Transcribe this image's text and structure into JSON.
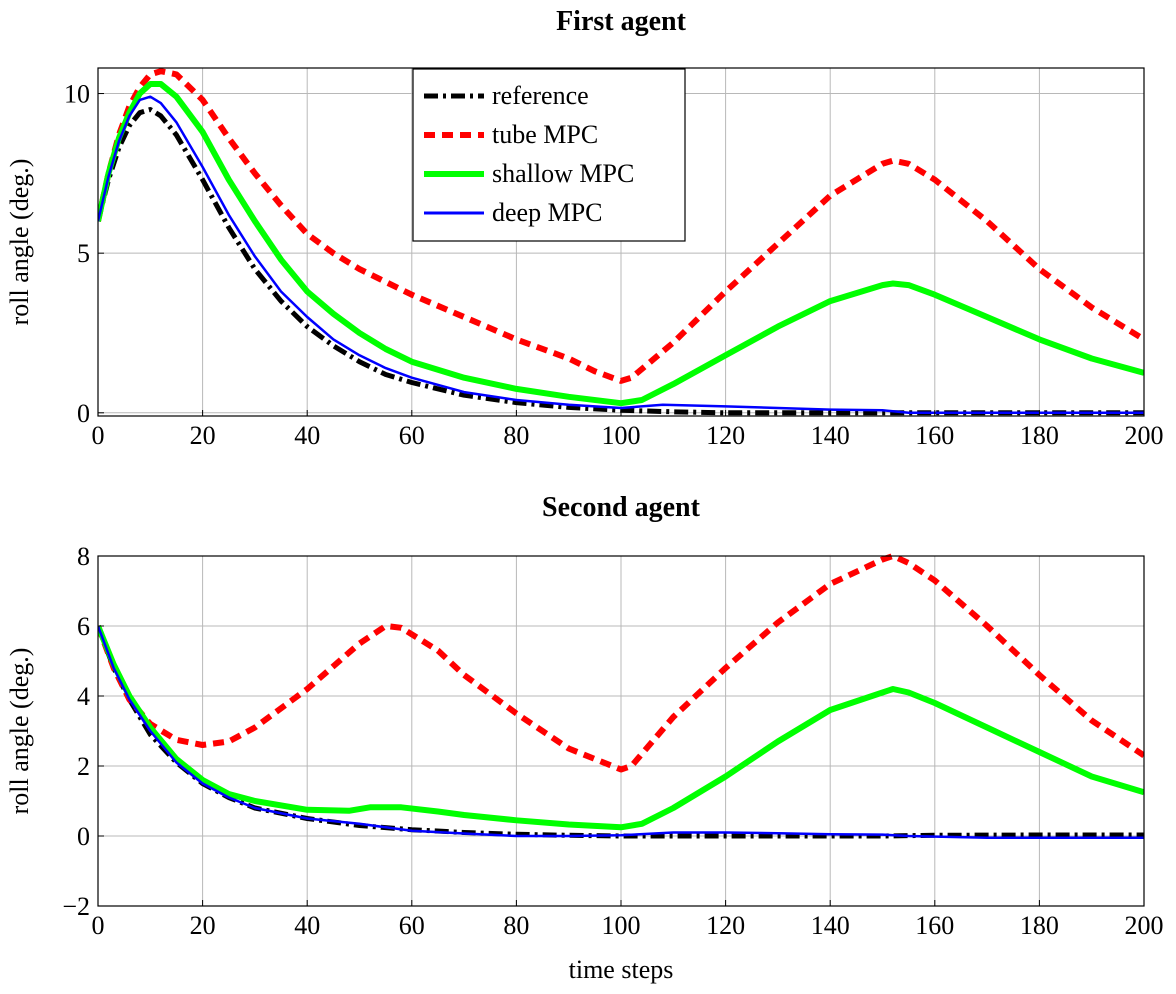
{
  "chart_data": [
    {
      "type": "line",
      "title": "First agent",
      "xlabel": "",
      "ylabel": "roll angle (deg.)",
      "xlim": [
        0,
        200
      ],
      "ylim": [
        -0.1,
        10.8
      ],
      "xticks": [
        0,
        20,
        40,
        60,
        80,
        100,
        120,
        140,
        160,
        180,
        200
      ],
      "yticks": [
        0,
        5,
        10
      ],
      "grid": true,
      "legend": "top-center",
      "series": [
        {
          "name": "reference",
          "color": "#000000",
          "style": "dashdot",
          "points": [
            [
              0,
              6
            ],
            [
              2,
              7.3
            ],
            [
              4,
              8.3
            ],
            [
              6,
              9
            ],
            [
              8,
              9.4
            ],
            [
              10,
              9.5
            ],
            [
              12,
              9.3
            ],
            [
              15,
              8.7
            ],
            [
              20,
              7.3
            ],
            [
              25,
              5.8
            ],
            [
              30,
              4.5
            ],
            [
              35,
              3.5
            ],
            [
              40,
              2.7
            ],
            [
              45,
              2.1
            ],
            [
              50,
              1.6
            ],
            [
              55,
              1.2
            ],
            [
              60,
              0.95
            ],
            [
              70,
              0.55
            ],
            [
              80,
              0.32
            ],
            [
              90,
              0.17
            ],
            [
              100,
              0.08
            ],
            [
              110,
              0.03
            ],
            [
              120,
              0
            ],
            [
              140,
              0
            ],
            [
              160,
              0
            ],
            [
              180,
              0
            ],
            [
              200,
              0
            ]
          ]
        },
        {
          "name": "tube MPC",
          "color": "#ff0000",
          "style": "dashed",
          "points": [
            [
              0,
              6
            ],
            [
              2,
              7.5
            ],
            [
              4,
              8.7
            ],
            [
              6,
              9.6
            ],
            [
              8,
              10.2
            ],
            [
              10,
              10.6
            ],
            [
              12,
              10.7
            ],
            [
              15,
              10.6
            ],
            [
              20,
              9.8
            ],
            [
              25,
              8.6
            ],
            [
              30,
              7.5
            ],
            [
              35,
              6.5
            ],
            [
              40,
              5.6
            ],
            [
              45,
              5
            ],
            [
              50,
              4.5
            ],
            [
              60,
              3.7
            ],
            [
              70,
              3
            ],
            [
              80,
              2.3
            ],
            [
              90,
              1.7
            ],
            [
              95,
              1.3
            ],
            [
              100,
              1
            ],
            [
              102,
              1.1
            ],
            [
              110,
              2.2
            ],
            [
              120,
              3.8
            ],
            [
              130,
              5.3
            ],
            [
              140,
              6.8
            ],
            [
              150,
              7.8
            ],
            [
              152,
              7.9
            ],
            [
              155,
              7.8
            ],
            [
              160,
              7.3
            ],
            [
              170,
              6
            ],
            [
              180,
              4.5
            ],
            [
              190,
              3.3
            ],
            [
              200,
              2.3
            ]
          ]
        },
        {
          "name": "shallow MPC",
          "color": "#00ff00",
          "style": "solid",
          "points": [
            [
              0,
              6
            ],
            [
              2,
              7.5
            ],
            [
              4,
              8.6
            ],
            [
              6,
              9.4
            ],
            [
              8,
              10
            ],
            [
              10,
              10.3
            ],
            [
              12,
              10.3
            ],
            [
              15,
              9.9
            ],
            [
              20,
              8.8
            ],
            [
              25,
              7.3
            ],
            [
              30,
              6
            ],
            [
              35,
              4.8
            ],
            [
              40,
              3.8
            ],
            [
              45,
              3.1
            ],
            [
              50,
              2.5
            ],
            [
              55,
              2
            ],
            [
              60,
              1.6
            ],
            [
              70,
              1.1
            ],
            [
              80,
              0.75
            ],
            [
              90,
              0.5
            ],
            [
              100,
              0.3
            ],
            [
              104,
              0.4
            ],
            [
              110,
              0.9
            ],
            [
              120,
              1.8
            ],
            [
              130,
              2.7
            ],
            [
              140,
              3.5
            ],
            [
              150,
              4
            ],
            [
              152,
              4.05
            ],
            [
              155,
              4
            ],
            [
              160,
              3.7
            ],
            [
              170,
              3
            ],
            [
              180,
              2.3
            ],
            [
              190,
              1.7
            ],
            [
              200,
              1.25
            ]
          ]
        },
        {
          "name": "deep MPC",
          "color": "#0000ff",
          "style": "solid",
          "points": [
            [
              0,
              6
            ],
            [
              2,
              7.4
            ],
            [
              4,
              8.5
            ],
            [
              6,
              9.3
            ],
            [
              8,
              9.8
            ],
            [
              10,
              9.9
            ],
            [
              12,
              9.7
            ],
            [
              15,
              9.1
            ],
            [
              20,
              7.7
            ],
            [
              25,
              6.2
            ],
            [
              30,
              4.9
            ],
            [
              35,
              3.8
            ],
            [
              40,
              3
            ],
            [
              45,
              2.3
            ],
            [
              50,
              1.8
            ],
            [
              55,
              1.4
            ],
            [
              60,
              1.1
            ],
            [
              70,
              0.65
            ],
            [
              80,
              0.4
            ],
            [
              90,
              0.25
            ],
            [
              100,
              0.15
            ],
            [
              108,
              0.25
            ],
            [
              120,
              0.2
            ],
            [
              130,
              0.15
            ],
            [
              140,
              0.1
            ],
            [
              150,
              0.08
            ],
            [
              155,
              0
            ],
            [
              170,
              0
            ],
            [
              200,
              0
            ]
          ]
        }
      ]
    },
    {
      "type": "line",
      "title": "Second agent",
      "xlabel": "time steps",
      "ylabel": "roll angle (deg.)",
      "xlim": [
        0,
        200
      ],
      "ylim": [
        -2,
        8
      ],
      "xticks": [
        0,
        20,
        40,
        60,
        80,
        100,
        120,
        140,
        160,
        180,
        200
      ],
      "yticks": [
        -2,
        0,
        2,
        4,
        6,
        8
      ],
      "grid": true,
      "series": [
        {
          "name": "reference",
          "color": "#000000",
          "style": "dashdot",
          "points": [
            [
              0,
              6
            ],
            [
              3,
              4.8
            ],
            [
              6,
              3.9
            ],
            [
              10,
              2.9
            ],
            [
              15,
              2.1
            ],
            [
              20,
              1.5
            ],
            [
              25,
              1.1
            ],
            [
              30,
              0.8
            ],
            [
              40,
              0.5
            ],
            [
              50,
              0.3
            ],
            [
              60,
              0.18
            ],
            [
              70,
              0.1
            ],
            [
              80,
              0.05
            ],
            [
              90,
              0.02
            ],
            [
              100,
              0
            ],
            [
              120,
              0
            ],
            [
              150,
              0
            ],
            [
              160,
              0.02
            ],
            [
              180,
              0.03
            ],
            [
              200,
              0.03
            ]
          ]
        },
        {
          "name": "tube MPC",
          "color": "#ff0000",
          "style": "dashed",
          "points": [
            [
              0,
              6
            ],
            [
              3,
              4.8
            ],
            [
              6,
              3.9
            ],
            [
              10,
              3.2
            ],
            [
              15,
              2.75
            ],
            [
              20,
              2.6
            ],
            [
              25,
              2.7
            ],
            [
              30,
              3.1
            ],
            [
              40,
              4.2
            ],
            [
              50,
              5.5
            ],
            [
              55,
              6
            ],
            [
              58,
              5.95
            ],
            [
              65,
              5.3
            ],
            [
              70,
              4.6
            ],
            [
              80,
              3.5
            ],
            [
              90,
              2.5
            ],
            [
              100,
              1.9
            ],
            [
              102,
              2
            ],
            [
              110,
              3.4
            ],
            [
              120,
              4.8
            ],
            [
              130,
              6.1
            ],
            [
              140,
              7.2
            ],
            [
              150,
              7.9
            ],
            [
              152,
              8
            ],
            [
              155,
              7.8
            ],
            [
              160,
              7.3
            ],
            [
              170,
              6
            ],
            [
              180,
              4.6
            ],
            [
              190,
              3.3
            ],
            [
              200,
              2.3
            ]
          ]
        },
        {
          "name": "shallow MPC",
          "color": "#00ff00",
          "style": "solid",
          "points": [
            [
              0,
              6
            ],
            [
              3,
              4.9
            ],
            [
              6,
              4
            ],
            [
              10,
              3.1
            ],
            [
              15,
              2.2
            ],
            [
              20,
              1.6
            ],
            [
              25,
              1.2
            ],
            [
              30,
              1
            ],
            [
              40,
              0.75
            ],
            [
              48,
              0.72
            ],
            [
              52,
              0.82
            ],
            [
              58,
              0.82
            ],
            [
              65,
              0.7
            ],
            [
              70,
              0.6
            ],
            [
              80,
              0.45
            ],
            [
              90,
              0.33
            ],
            [
              100,
              0.25
            ],
            [
              104,
              0.35
            ],
            [
              110,
              0.8
            ],
            [
              120,
              1.7
            ],
            [
              130,
              2.7
            ],
            [
              140,
              3.6
            ],
            [
              150,
              4.1
            ],
            [
              152,
              4.2
            ],
            [
              155,
              4.1
            ],
            [
              160,
              3.8
            ],
            [
              170,
              3.1
            ],
            [
              180,
              2.4
            ],
            [
              190,
              1.7
            ],
            [
              200,
              1.25
            ]
          ]
        },
        {
          "name": "deep MPC",
          "color": "#0000ff",
          "style": "solid",
          "points": [
            [
              0,
              6
            ],
            [
              3,
              4.8
            ],
            [
              6,
              3.9
            ],
            [
              10,
              3
            ],
            [
              15,
              2.1
            ],
            [
              20,
              1.5
            ],
            [
              25,
              1.1
            ],
            [
              30,
              0.8
            ],
            [
              40,
              0.5
            ],
            [
              50,
              0.35
            ],
            [
              55,
              0.25
            ],
            [
              60,
              0.15
            ],
            [
              70,
              0.07
            ],
            [
              80,
              0
            ],
            [
              90,
              0
            ],
            [
              100,
              0.02
            ],
            [
              110,
              0.1
            ],
            [
              120,
              0.1
            ],
            [
              130,
              0.08
            ],
            [
              140,
              0.05
            ],
            [
              150,
              0.04
            ],
            [
              155,
              0
            ],
            [
              170,
              -0.05
            ],
            [
              200,
              -0.05
            ]
          ]
        }
      ]
    }
  ]
}
